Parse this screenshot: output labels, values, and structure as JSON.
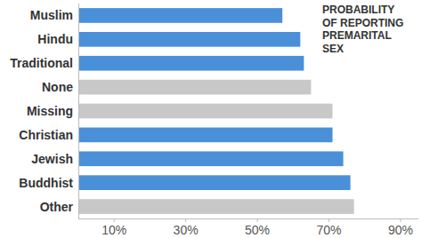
{
  "chart_data": {
    "type": "bar",
    "orientation": "horizontal",
    "title": "PROBABILITY OF REPORTING PREMARITAL SEX",
    "categories": [
      "Muslim",
      "Hindu",
      "Traditional",
      "None",
      "Missing",
      "Christian",
      "Jewish",
      "Buddhist",
      "Other"
    ],
    "values": [
      57,
      62,
      63,
      65,
      71,
      71,
      74,
      76,
      77
    ],
    "colors": [
      "#4a90d9",
      "#4a90d9",
      "#4a90d9",
      "#c8c8c8",
      "#c8c8c8",
      "#4a90d9",
      "#4a90d9",
      "#4a90d9",
      "#c8c8c8"
    ],
    "xlim": [
      0,
      95
    ],
    "xticks": [
      {
        "value": 10,
        "label": "10%"
      },
      {
        "value": 30,
        "label": "30%"
      },
      {
        "value": 50,
        "label": "50%"
      },
      {
        "value": 70,
        "label": "70%"
      },
      {
        "value": 90,
        "label": "90%"
      }
    ],
    "grid": false
  }
}
